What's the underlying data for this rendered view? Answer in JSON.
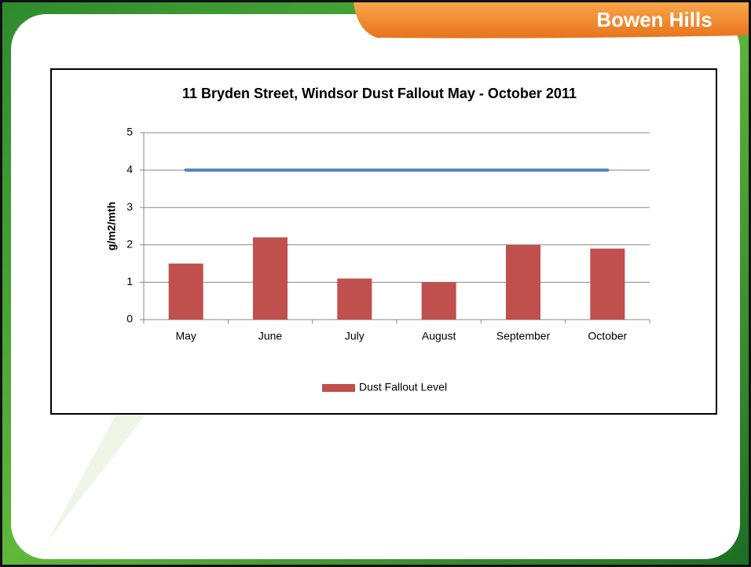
{
  "header": {
    "title": "Bowen Hills"
  },
  "chart_data": {
    "type": "bar",
    "title": "11 Bryden Street, Windsor Dust Fallout May - October 2011",
    "y_label": "g/m2/mth",
    "categories": [
      "May",
      "June",
      "July",
      "August",
      "September",
      "October"
    ],
    "series": [
      {
        "name": "Dust Fallout Level",
        "color": "#c0504d",
        "values": [
          1.5,
          2.2,
          1.1,
          1.0,
          2.0,
          1.9
        ]
      },
      {
        "type": "line",
        "color": "#4f81bd",
        "values": [
          4,
          4,
          4,
          4,
          4,
          4
        ]
      }
    ],
    "ylim": [
      0,
      5
    ],
    "yticks": [
      0,
      1,
      2,
      3,
      4,
      5
    ],
    "grid": true,
    "legend": "bottom"
  }
}
